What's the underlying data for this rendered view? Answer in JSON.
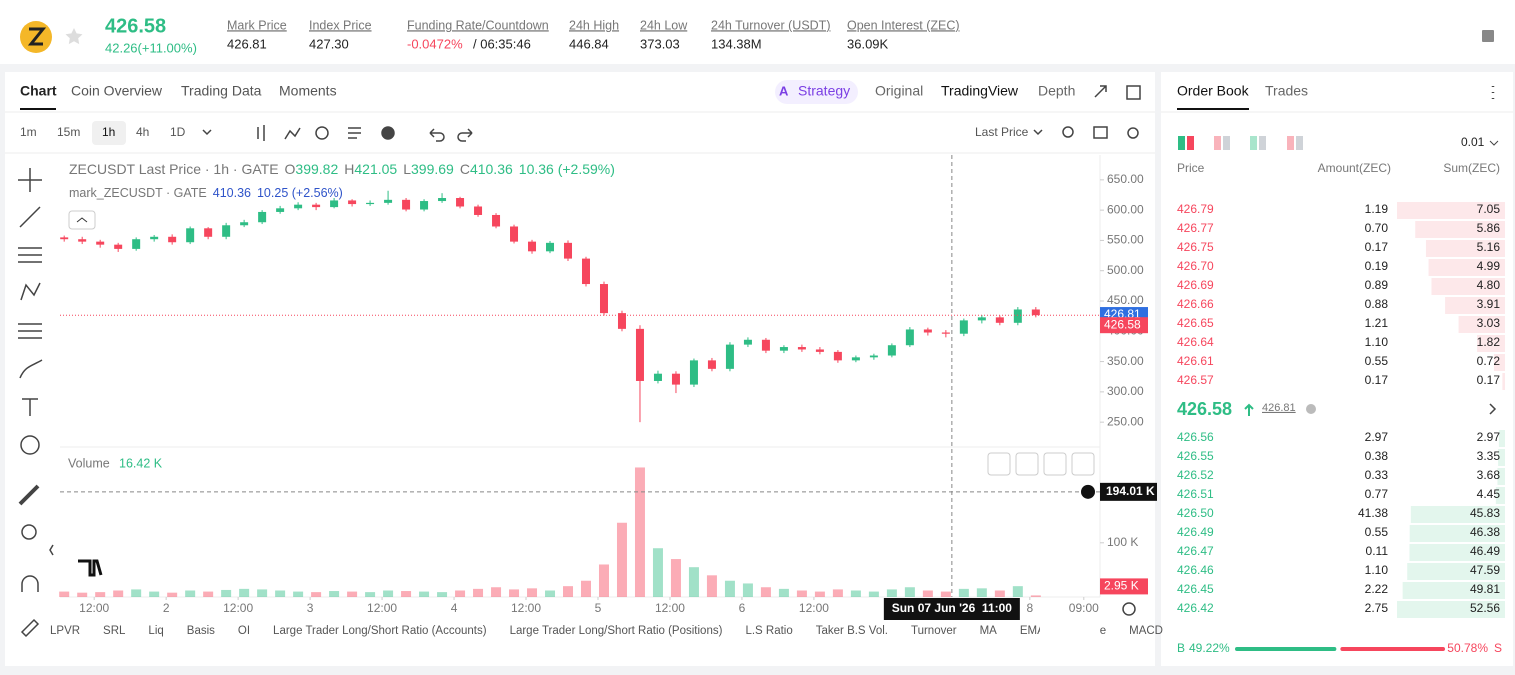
{
  "header": {
    "price": "426.58",
    "change": "42.26(+11.00%)",
    "stats": [
      [
        "Mark Price",
        "426.81"
      ],
      [
        "Index Price",
        "427.30"
      ],
      [
        "Funding Rate/Countdown",
        "-0.0472%",
        "/ 06:35:46"
      ],
      [
        "24h High",
        "446.84"
      ],
      [
        "24h Low",
        "373.03"
      ],
      [
        "24h Turnover (USDT)",
        "134.38M"
      ],
      [
        "Open Interest (ZEC)",
        "36.09K"
      ]
    ]
  },
  "chart_tabs": [
    "Chart",
    "Coin Overview",
    "Trading Data",
    "Moments"
  ],
  "view_tabs": [
    "Strategy",
    "Original",
    "TradingView",
    "Depth"
  ],
  "intervals": [
    "1m",
    "15m",
    "1h",
    "4h",
    "1D"
  ],
  "price_source": "Last Price",
  "indicators": [
    "LPVR",
    "SRL",
    "Liq",
    "Basis",
    "OI",
    "Large Trader Long/Short Ratio (Accounts)",
    "Large Trader Long/Short Ratio (Positions)",
    "L.S Ratio",
    "Taker B.S Vol.",
    "Turnover",
    "MA",
    "EMA",
    "Volume",
    "MACD"
  ],
  "chart_data": {
    "type": "candlestick",
    "title": "ZECUSDT Last Price · 1h · GATE",
    "ohlc": [
      [
        "O",
        "399.82"
      ],
      [
        "H",
        "421.05"
      ],
      [
        "L",
        "399.69"
      ],
      [
        "C",
        "410.36"
      ]
    ],
    "change": "10.36 (+2.59%)",
    "mark_legend": {
      "name": "mark_ZECUSDT · GATE",
      "value": "410.36",
      "change": "10.25 (+2.56%)"
    },
    "colors": {
      "up": "#2ebd85",
      "down": "#f6465d"
    },
    "x": [
      7,
      10,
      13,
      16,
      19,
      22,
      25,
      28,
      31,
      34,
      37,
      40,
      43,
      46,
      49,
      52,
      55,
      58,
      61,
      64,
      67,
      70,
      73,
      76,
      79,
      82,
      85,
      88,
      91,
      94,
      97,
      100,
      103,
      106,
      109,
      112,
      115,
      118,
      121,
      124,
      127,
      130,
      133,
      136,
      139,
      142,
      145,
      148,
      151,
      154,
      157,
      160,
      163,
      166,
      169
    ],
    "open": [
      555,
      552,
      548,
      543,
      536,
      552,
      556,
      547,
      570,
      556,
      575,
      580,
      597,
      603,
      609,
      605,
      616,
      610,
      612,
      617,
      601,
      615,
      620,
      606,
      592,
      573,
      548,
      532,
      546,
      520,
      478,
      430,
      404,
      318,
      330,
      312,
      352,
      338,
      378,
      386,
      368,
      374,
      370,
      366,
      352,
      357,
      360,
      377,
      403,
      398,
      396,
      418,
      423,
      414,
      436
    ],
    "high": [
      558,
      556,
      551,
      546,
      555,
      559,
      560,
      573,
      572,
      579,
      584,
      600,
      607,
      613,
      612,
      620,
      618,
      616,
      632,
      620,
      618,
      628,
      622,
      609,
      595,
      576,
      551,
      549,
      550,
      523,
      482,
      434,
      410,
      335,
      334,
      355,
      356,
      382,
      390,
      389,
      377,
      378,
      374,
      369,
      360,
      363,
      380,
      407,
      406,
      402,
      421,
      427,
      426,
      440,
      440
    ],
    "low": [
      548,
      544,
      538,
      531,
      533,
      548,
      543,
      544,
      552,
      552,
      572,
      577,
      594,
      600,
      600,
      603,
      606,
      607,
      609,
      598,
      598,
      612,
      603,
      589,
      570,
      545,
      528,
      529,
      516,
      474,
      426,
      400,
      250,
      314,
      298,
      308,
      334,
      334,
      374,
      364,
      364,
      366,
      362,
      348,
      349,
      353,
      357,
      374,
      393,
      390,
      392,
      413,
      410,
      410,
      423
    ],
    "close": [
      552,
      548,
      543,
      536,
      552,
      556,
      547,
      570,
      556,
      575,
      580,
      597,
      603,
      609,
      605,
      616,
      610,
      612,
      617,
      601,
      615,
      620,
      606,
      592,
      573,
      548,
      532,
      546,
      520,
      478,
      430,
      404,
      318,
      330,
      312,
      352,
      338,
      378,
      386,
      368,
      374,
      370,
      366,
      352,
      357,
      360,
      377,
      403,
      398,
      396,
      418,
      423,
      414,
      436,
      426.58
    ],
    "xlim": [
      6.3,
      179.7
    ],
    "xticks": [
      {
        "value": 12,
        "label": "12:00"
      },
      {
        "value": 24,
        "label": "2"
      },
      {
        "value": 36,
        "label": "12:00"
      },
      {
        "value": 48,
        "label": "3"
      },
      {
        "value": 60,
        "label": "12:00"
      },
      {
        "value": 72,
        "label": "4"
      },
      {
        "value": 84,
        "label": "12:00"
      },
      {
        "value": 96,
        "label": "5"
      },
      {
        "value": 108,
        "label": "12:00"
      },
      {
        "value": 120,
        "label": "6"
      },
      {
        "value": 132,
        "label": "12:00"
      },
      {
        "value": 168,
        "label": "8"
      },
      {
        "value": 177,
        "label": "09:00"
      }
    ],
    "ylim": [
      209,
      691
    ],
    "yticks": [
      {
        "value": 250,
        "label": "250.00"
      },
      {
        "value": 300,
        "label": "300.00"
      },
      {
        "value": 350,
        "label": "350.00"
      },
      {
        "value": 400,
        "label": "400.00"
      },
      {
        "value": 450,
        "label": "450.00"
      },
      {
        "value": 500,
        "label": "500.00"
      },
      {
        "value": 550,
        "label": "550.00"
      },
      {
        "value": 600,
        "label": "600.00"
      },
      {
        "value": 650,
        "label": "650.00"
      }
    ],
    "mark_price": 426.81,
    "last_price": 426.58,
    "volume": {
      "name": "Volume",
      "current_label": "16.42 K",
      "last_label": "2.95 K",
      "values": [
        10,
        8,
        9,
        12,
        14,
        10,
        8,
        12,
        10,
        13,
        15,
        14,
        12,
        10,
        9,
        11,
        10,
        9,
        12,
        11,
        10,
        9,
        12,
        15,
        18,
        14,
        16,
        12,
        20,
        30,
        60,
        137,
        239,
        90,
        70,
        55,
        40,
        30,
        25,
        18,
        15,
        12,
        10,
        14,
        12,
        10,
        14,
        18,
        12,
        10,
        15,
        16,
        12,
        20,
        2.95
      ],
      "ylim": [
        0,
        262
      ],
      "yticks": [
        {
          "value": 100,
          "label": "100 K"
        }
      ]
    },
    "crosshair": {
      "x": 155,
      "x_label": "Sun 07 Jun '26  11:00",
      "volume": 194.01,
      "volume_label": "194.01 K"
    }
  },
  "order_book": {
    "tabs": [
      "Order Book",
      "Trades"
    ],
    "tick": "0.01",
    "headers": [
      "Price",
      "Amount(ZEC)",
      "Sum(ZEC)"
    ],
    "asks": [
      [
        "426.79",
        "1.19",
        "7.05"
      ],
      [
        "426.77",
        "0.70",
        "5.86"
      ],
      [
        "426.75",
        "0.17",
        "5.16"
      ],
      [
        "426.70",
        "0.19",
        "4.99"
      ],
      [
        "426.69",
        "0.89",
        "4.80"
      ],
      [
        "426.66",
        "0.88",
        "3.91"
      ],
      [
        "426.65",
        "1.21",
        "3.03"
      ],
      [
        "426.64",
        "1.10",
        "1.82"
      ],
      [
        "426.61",
        "0.55",
        "0.72"
      ],
      [
        "426.57",
        "0.17",
        "0.17"
      ]
    ],
    "mid": {
      "price": "426.58",
      "mark": "426.81"
    },
    "bids": [
      [
        "426.56",
        "2.97",
        "2.97"
      ],
      [
        "426.55",
        "0.38",
        "3.35"
      ],
      [
        "426.52",
        "0.33",
        "3.68"
      ],
      [
        "426.51",
        "0.77",
        "4.45"
      ],
      [
        "426.50",
        "41.38",
        "45.83"
      ],
      [
        "426.49",
        "0.55",
        "46.38"
      ],
      [
        "426.47",
        "0.11",
        "46.49"
      ],
      [
        "426.46",
        "1.10",
        "47.59"
      ],
      [
        "426.45",
        "2.22",
        "49.81"
      ],
      [
        "426.42",
        "2.75",
        "52.56"
      ]
    ],
    "ratio": {
      "buy_label": "B",
      "buy": "49.22%",
      "sell": "50.78%",
      "sell_label": "S"
    }
  }
}
